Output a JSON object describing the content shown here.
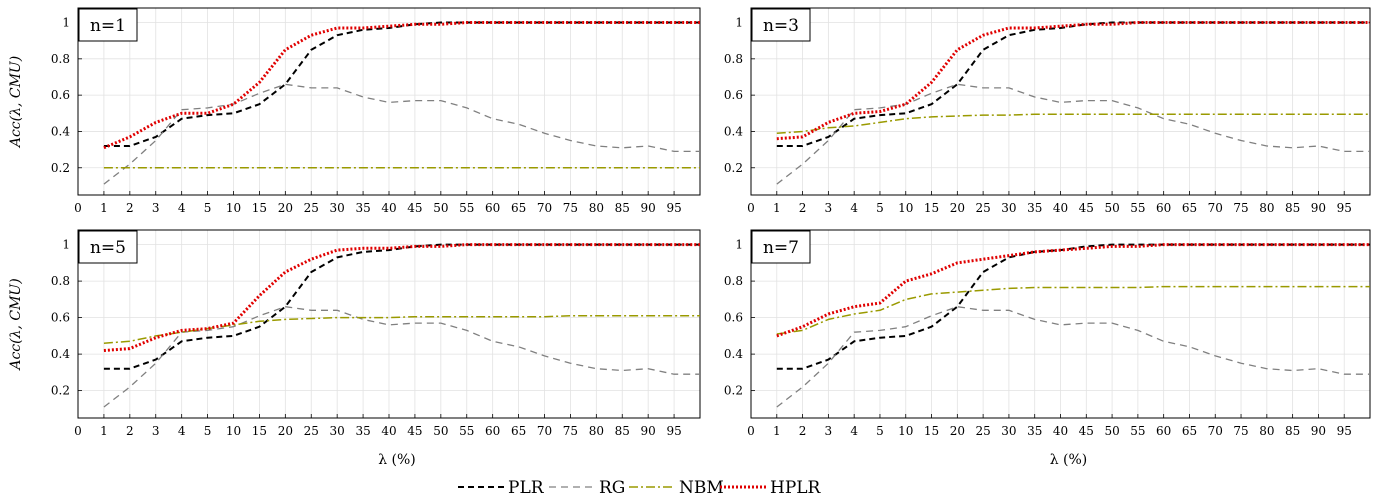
{
  "legend": [
    {
      "key": "PLR",
      "label": "PLR",
      "color": "#000000",
      "dash": "6,4",
      "width": 2
    },
    {
      "key": "RG",
      "label": "RG",
      "color": "#808080",
      "dash": "7,5",
      "width": 1.3
    },
    {
      "key": "NBM",
      "label": "NBM",
      "color": "#9a9a00",
      "dash": "9,3,2,3",
      "width": 1.5
    },
    {
      "key": "HPLR",
      "label": "HPLR",
      "color": "#e00000",
      "dash": "2,2",
      "width": 3
    }
  ],
  "chart_data": [
    {
      "type": "line",
      "title": "n=1",
      "ylabel": "Acc(λ, CMU)",
      "xlabel": "",
      "x_ticks": [
        "0",
        "1",
        "2",
        "3",
        "4",
        "5",
        "10",
        "15",
        "20",
        "25",
        "30",
        "35",
        "40",
        "45",
        "50",
        "55",
        "60",
        "65",
        "70",
        "75",
        "80",
        "85",
        "90",
        "95"
      ],
      "y_ticks": [
        "0.2",
        "0.4",
        "0.6",
        "0.8",
        "1"
      ],
      "ylim": [
        0.05,
        1.08
      ],
      "grid": true,
      "categories": [
        "1",
        "2",
        "3",
        "4",
        "5",
        "10",
        "15",
        "20",
        "25",
        "30",
        "35",
        "40",
        "45",
        "50",
        "55",
        "60",
        "65",
        "70",
        "75",
        "80",
        "85",
        "90",
        "95",
        "100"
      ],
      "series": [
        {
          "name": "PLR",
          "values": [
            0.32,
            0.32,
            0.37,
            0.47,
            0.49,
            0.5,
            0.55,
            0.66,
            0.85,
            0.93,
            0.96,
            0.97,
            0.99,
            1.0,
            1.0,
            1.0,
            1.0,
            1.0,
            1.0,
            1.0,
            1.0,
            1.0,
            1.0,
            1.0
          ]
        },
        {
          "name": "RG",
          "values": [
            0.11,
            0.22,
            0.35,
            0.52,
            0.53,
            0.55,
            0.61,
            0.66,
            0.64,
            0.64,
            0.59,
            0.56,
            0.57,
            0.57,
            0.53,
            0.47,
            0.44,
            0.39,
            0.35,
            0.32,
            0.31,
            0.32,
            0.29,
            0.29
          ]
        },
        {
          "name": "NBM",
          "values": [
            0.2,
            0.2,
            0.2,
            0.2,
            0.2,
            0.2,
            0.2,
            0.2,
            0.2,
            0.2,
            0.2,
            0.2,
            0.2,
            0.2,
            0.2,
            0.2,
            0.2,
            0.2,
            0.2,
            0.2,
            0.2,
            0.2,
            0.2,
            0.2
          ]
        },
        {
          "name": "HPLR",
          "values": [
            0.31,
            0.37,
            0.45,
            0.5,
            0.5,
            0.55,
            0.67,
            0.85,
            0.93,
            0.97,
            0.97,
            0.98,
            0.99,
            0.99,
            1.0,
            1.0,
            1.0,
            1.0,
            1.0,
            1.0,
            1.0,
            1.0,
            1.0,
            1.0
          ]
        }
      ]
    },
    {
      "type": "line",
      "title": "n=3",
      "ylabel": "",
      "xlabel": "",
      "x_ticks": [
        "0",
        "1",
        "2",
        "3",
        "4",
        "5",
        "10",
        "15",
        "20",
        "25",
        "30",
        "35",
        "40",
        "45",
        "50",
        "55",
        "60",
        "65",
        "70",
        "75",
        "80",
        "85",
        "90",
        "95"
      ],
      "y_ticks": [
        "0.2",
        "0.4",
        "0.6",
        "0.8",
        "1"
      ],
      "ylim": [
        0.05,
        1.08
      ],
      "grid": true,
      "categories": [
        "1",
        "2",
        "3",
        "4",
        "5",
        "10",
        "15",
        "20",
        "25",
        "30",
        "35",
        "40",
        "45",
        "50",
        "55",
        "60",
        "65",
        "70",
        "75",
        "80",
        "85",
        "90",
        "95",
        "100"
      ],
      "series": [
        {
          "name": "PLR",
          "values": [
            0.32,
            0.32,
            0.37,
            0.47,
            0.49,
            0.5,
            0.55,
            0.66,
            0.85,
            0.93,
            0.96,
            0.97,
            0.99,
            1.0,
            1.0,
            1.0,
            1.0,
            1.0,
            1.0,
            1.0,
            1.0,
            1.0,
            1.0,
            1.0
          ]
        },
        {
          "name": "RG",
          "values": [
            0.11,
            0.22,
            0.35,
            0.52,
            0.53,
            0.55,
            0.61,
            0.66,
            0.64,
            0.64,
            0.59,
            0.56,
            0.57,
            0.57,
            0.53,
            0.47,
            0.44,
            0.39,
            0.35,
            0.32,
            0.31,
            0.32,
            0.29,
            0.29
          ]
        },
        {
          "name": "NBM",
          "values": [
            0.39,
            0.4,
            0.42,
            0.43,
            0.45,
            0.47,
            0.48,
            0.485,
            0.49,
            0.49,
            0.495,
            0.495,
            0.495,
            0.495,
            0.495,
            0.495,
            0.495,
            0.495,
            0.495,
            0.495,
            0.495,
            0.495,
            0.495,
            0.495
          ]
        },
        {
          "name": "HPLR",
          "values": [
            0.36,
            0.37,
            0.45,
            0.5,
            0.51,
            0.55,
            0.67,
            0.85,
            0.93,
            0.97,
            0.97,
            0.98,
            0.99,
            0.99,
            1.0,
            1.0,
            1.0,
            1.0,
            1.0,
            1.0,
            1.0,
            1.0,
            1.0,
            1.0
          ]
        }
      ]
    },
    {
      "type": "line",
      "title": "n=5",
      "ylabel": "Acc(λ, CMU)",
      "xlabel": "λ (%)",
      "x_ticks": [
        "0",
        "1",
        "2",
        "3",
        "4",
        "5",
        "10",
        "15",
        "20",
        "25",
        "30",
        "35",
        "40",
        "45",
        "50",
        "55",
        "60",
        "65",
        "70",
        "75",
        "80",
        "85",
        "90",
        "95"
      ],
      "y_ticks": [
        "0.2",
        "0.4",
        "0.6",
        "0.8",
        "1"
      ],
      "ylim": [
        0.05,
        1.08
      ],
      "grid": true,
      "categories": [
        "1",
        "2",
        "3",
        "4",
        "5",
        "10",
        "15",
        "20",
        "25",
        "30",
        "35",
        "40",
        "45",
        "50",
        "55",
        "60",
        "65",
        "70",
        "75",
        "80",
        "85",
        "90",
        "95",
        "100"
      ],
      "series": [
        {
          "name": "PLR",
          "values": [
            0.32,
            0.32,
            0.37,
            0.47,
            0.49,
            0.5,
            0.55,
            0.66,
            0.85,
            0.93,
            0.96,
            0.97,
            0.99,
            1.0,
            1.0,
            1.0,
            1.0,
            1.0,
            1.0,
            1.0,
            1.0,
            1.0,
            1.0,
            1.0
          ]
        },
        {
          "name": "RG",
          "values": [
            0.11,
            0.22,
            0.35,
            0.52,
            0.53,
            0.55,
            0.61,
            0.66,
            0.64,
            0.64,
            0.59,
            0.56,
            0.57,
            0.57,
            0.53,
            0.47,
            0.44,
            0.39,
            0.35,
            0.32,
            0.31,
            0.32,
            0.29,
            0.29
          ]
        },
        {
          "name": "NBM",
          "values": [
            0.46,
            0.47,
            0.5,
            0.52,
            0.54,
            0.56,
            0.58,
            0.59,
            0.595,
            0.6,
            0.6,
            0.6,
            0.605,
            0.605,
            0.605,
            0.605,
            0.605,
            0.605,
            0.61,
            0.61,
            0.61,
            0.61,
            0.61,
            0.61
          ]
        },
        {
          "name": "HPLR",
          "values": [
            0.42,
            0.43,
            0.49,
            0.53,
            0.54,
            0.57,
            0.72,
            0.85,
            0.92,
            0.97,
            0.98,
            0.98,
            0.99,
            0.99,
            1.0,
            1.0,
            1.0,
            1.0,
            1.0,
            1.0,
            1.0,
            1.0,
            1.0,
            1.0
          ]
        }
      ]
    },
    {
      "type": "line",
      "title": "n=7",
      "ylabel": "",
      "xlabel": "λ (%)",
      "x_ticks": [
        "0",
        "1",
        "2",
        "3",
        "4",
        "5",
        "10",
        "15",
        "20",
        "25",
        "30",
        "35",
        "40",
        "45",
        "50",
        "55",
        "60",
        "65",
        "70",
        "75",
        "80",
        "85",
        "90",
        "95"
      ],
      "y_ticks": [
        "0.2",
        "0.4",
        "0.6",
        "0.8",
        "1"
      ],
      "ylim": [
        0.05,
        1.08
      ],
      "grid": true,
      "categories": [
        "1",
        "2",
        "3",
        "4",
        "5",
        "10",
        "15",
        "20",
        "25",
        "30",
        "35",
        "40",
        "45",
        "50",
        "55",
        "60",
        "65",
        "70",
        "75",
        "80",
        "85",
        "90",
        "95",
        "100"
      ],
      "series": [
        {
          "name": "PLR",
          "values": [
            0.32,
            0.32,
            0.37,
            0.47,
            0.49,
            0.5,
            0.55,
            0.66,
            0.85,
            0.93,
            0.96,
            0.97,
            0.99,
            1.0,
            1.0,
            1.0,
            1.0,
            1.0,
            1.0,
            1.0,
            1.0,
            1.0,
            1.0,
            1.0
          ]
        },
        {
          "name": "RG",
          "values": [
            0.11,
            0.22,
            0.35,
            0.52,
            0.53,
            0.55,
            0.61,
            0.66,
            0.64,
            0.64,
            0.59,
            0.56,
            0.57,
            0.57,
            0.53,
            0.47,
            0.44,
            0.39,
            0.35,
            0.32,
            0.31,
            0.32,
            0.29,
            0.29
          ]
        },
        {
          "name": "NBM",
          "values": [
            0.51,
            0.53,
            0.59,
            0.62,
            0.64,
            0.7,
            0.73,
            0.74,
            0.75,
            0.76,
            0.765,
            0.765,
            0.765,
            0.765,
            0.765,
            0.77,
            0.77,
            0.77,
            0.77,
            0.77,
            0.77,
            0.77,
            0.77,
            0.77
          ]
        },
        {
          "name": "HPLR",
          "values": [
            0.5,
            0.55,
            0.62,
            0.66,
            0.68,
            0.8,
            0.84,
            0.9,
            0.92,
            0.94,
            0.96,
            0.97,
            0.98,
            0.99,
            0.99,
            1.0,
            1.0,
            1.0,
            1.0,
            1.0,
            1.0,
            1.0,
            1.0,
            1.0
          ]
        }
      ]
    }
  ]
}
